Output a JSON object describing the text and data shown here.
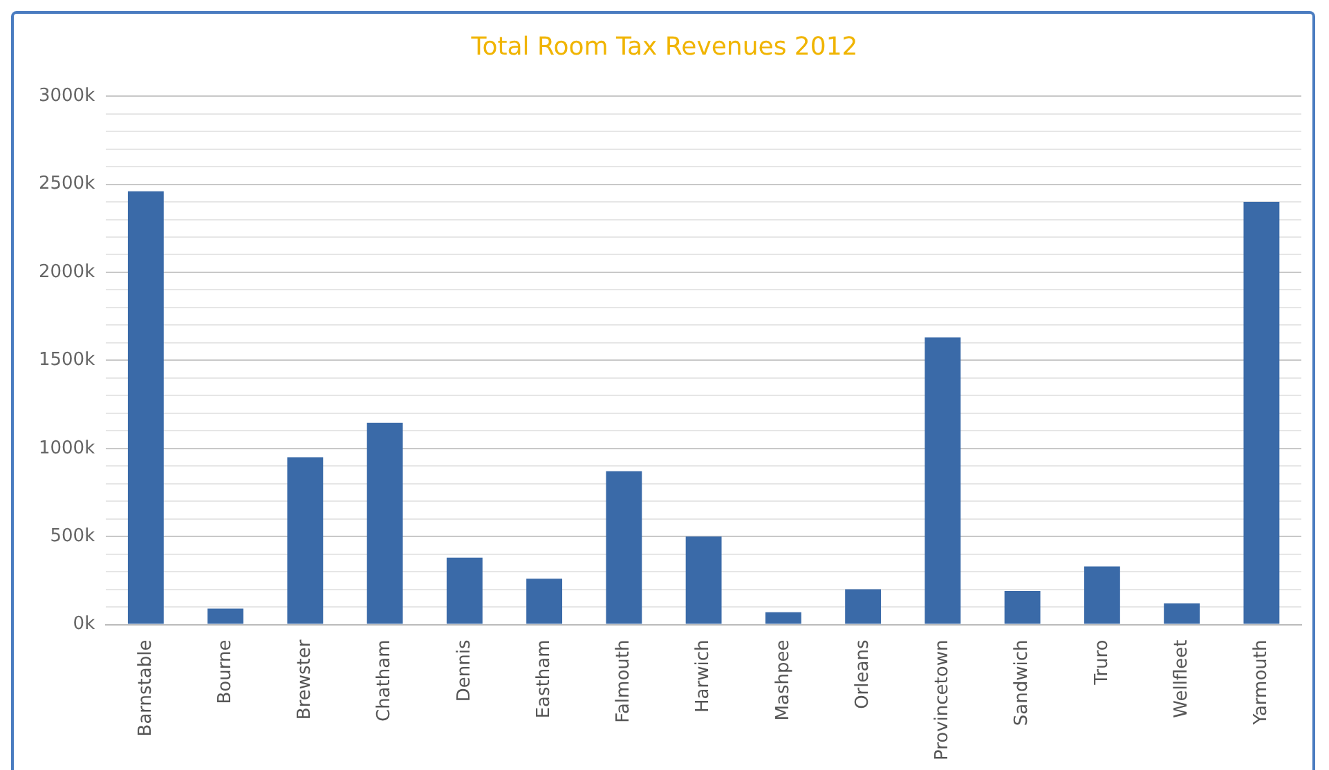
{
  "chart_data": {
    "type": "bar",
    "title": "Total Room Tax Revenues 2012",
    "categories": [
      "Barnstable",
      "Bourne",
      "Brewster",
      "Chatham",
      "Dennis",
      "Eastham",
      "Falmouth",
      "Harwich",
      "Mashpee",
      "Orleans",
      "Provincetown",
      "Sandwich",
      "Truro",
      "Wellfleet",
      "Yarmouth"
    ],
    "values": [
      2460000,
      90000,
      950000,
      1145000,
      380000,
      260000,
      870000,
      500000,
      70000,
      200000,
      1630000,
      190000,
      330000,
      120000,
      2400000
    ],
    "color": "#3a6aa8",
    "ylim": [
      0,
      3000000
    ],
    "yticks": [
      {
        "value": 0,
        "label": "0k"
      },
      {
        "value": 100000,
        "label": null
      },
      {
        "value": 200000,
        "label": null
      },
      {
        "value": 300000,
        "label": null
      },
      {
        "value": 400000,
        "label": null
      },
      {
        "value": 500000,
        "label": "500k"
      },
      {
        "value": 600000,
        "label": null
      },
      {
        "value": 700000,
        "label": null
      },
      {
        "value": 800000,
        "label": null
      },
      {
        "value": 900000,
        "label": null
      },
      {
        "value": 1000000,
        "label": "1000k"
      },
      {
        "value": 1100000,
        "label": null
      },
      {
        "value": 1200000,
        "label": null
      },
      {
        "value": 1300000,
        "label": null
      },
      {
        "value": 1400000,
        "label": null
      },
      {
        "value": 1500000,
        "label": "1500k"
      },
      {
        "value": 1600000,
        "label": null
      },
      {
        "value": 1700000,
        "label": null
      },
      {
        "value": 1800000,
        "label": null
      },
      {
        "value": 1900000,
        "label": null
      },
      {
        "value": 2000000,
        "label": "2000k"
      },
      {
        "value": 2100000,
        "label": null
      },
      {
        "value": 2200000,
        "label": null
      },
      {
        "value": 2300000,
        "label": null
      },
      {
        "value": 2400000,
        "label": null
      },
      {
        "value": 2500000,
        "label": "2500k"
      },
      {
        "value": 2600000,
        "label": null
      },
      {
        "value": 2700000,
        "label": null
      },
      {
        "value": 2800000,
        "label": null
      },
      {
        "value": 2900000,
        "label": null
      },
      {
        "value": 3000000,
        "label": "3000k"
      }
    ],
    "grid": "y",
    "legend": false
  }
}
